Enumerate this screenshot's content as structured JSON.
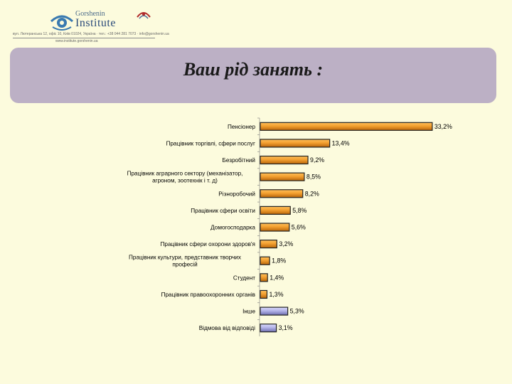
{
  "header": {
    "logo_top": "Gorshenin",
    "logo_main": "Institute",
    "contact_line1": "вул. Лютеранська 12, офіс 10, Київ 01024, Україна · тел.: +38 044 281 7073 · info@gorshenin.ua",
    "contact_line2": "www.institute.gorshenin.ua"
  },
  "title": "Ваш рід занять :",
  "chart_data": {
    "type": "bar",
    "orientation": "horizontal",
    "title": "Ваш рід занять :",
    "unit": "%",
    "categories": [
      [
        "Пенсіонер"
      ],
      [
        "Працівник торгівлі, сфери послуг"
      ],
      [
        "Безробітний"
      ],
      [
        "Працівник аграрного сектору (механізатор,",
        "агроном, зоотехнік і т. д)"
      ],
      [
        "Різноробочий"
      ],
      [
        "Працівник сфери освіти"
      ],
      [
        "Домогосподарка"
      ],
      [
        "Працівник сфери охорони здоров'я"
      ],
      [
        "Працівник культури, представник творчих",
        "професій"
      ],
      [
        "Студент"
      ],
      [
        "Працівник правоохоронних органів"
      ],
      [
        "Інше"
      ],
      [
        "Відмова від відповіді"
      ]
    ],
    "values": [
      33.2,
      13.4,
      9.2,
      8.5,
      8.2,
      5.8,
      5.6,
      3.2,
      1.8,
      1.4,
      1.3,
      5.3,
      3.1
    ],
    "value_labels": [
      "33,2%",
      "13,4%",
      "9,2%",
      "8,5%",
      "8,2%",
      "5,8%",
      "5,6%",
      "3,2%",
      "1,8%",
      "1,4%",
      "1,3%",
      "5,3%",
      "3,1%"
    ],
    "bar_colors": [
      "orange",
      "orange",
      "orange",
      "orange",
      "orange",
      "orange",
      "orange",
      "orange",
      "orange",
      "orange",
      "orange",
      "lavender",
      "lavender"
    ],
    "xlim": [
      0,
      35
    ],
    "grid": false,
    "legend": "none"
  },
  "colors": {
    "orange": "#e8900e",
    "orange_light": "#ffbf5a",
    "lavender": "#9a9ad6",
    "lavender_light": "#dcdcff",
    "title_bg": "#bcb0c5",
    "page_bg": "#fcfbdd"
  }
}
